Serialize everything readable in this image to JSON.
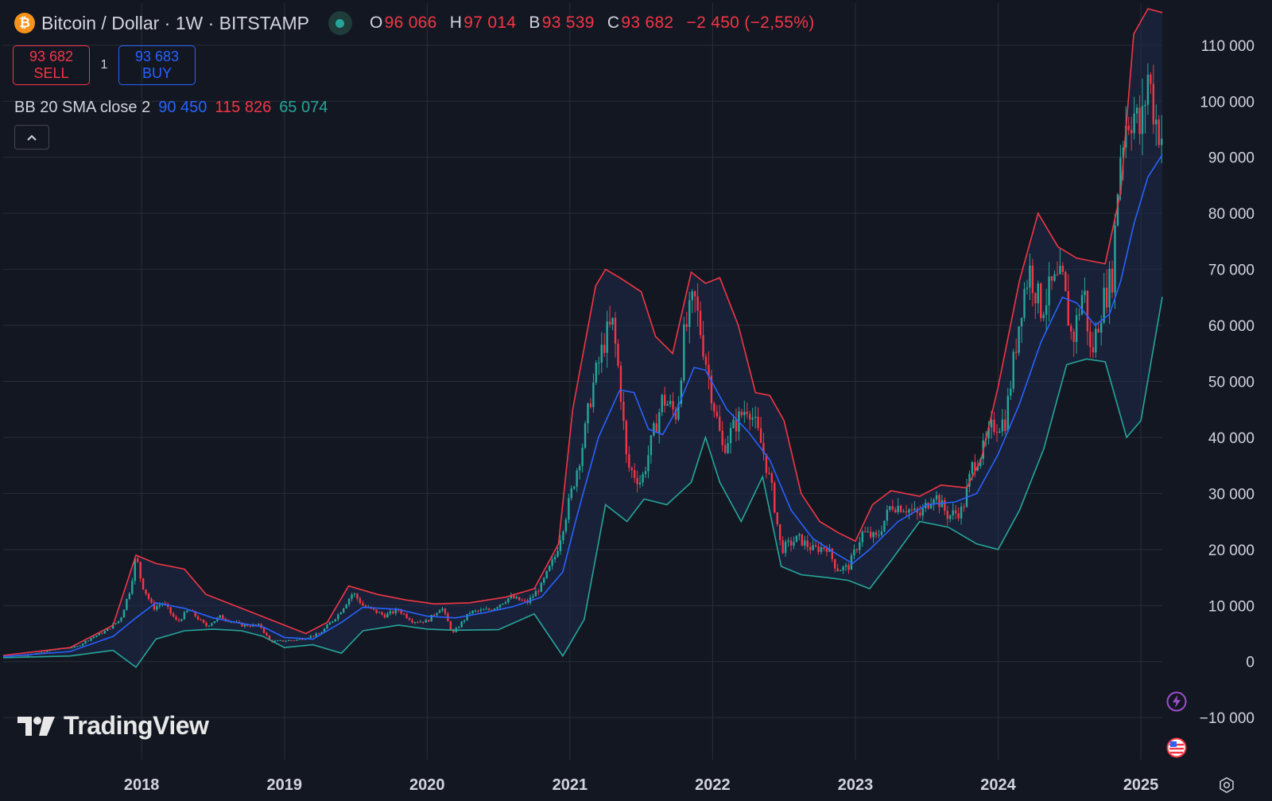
{
  "header": {
    "logo_symbol": "₿",
    "symbol_title": "Bitcoin / Dollar · 1W · BITSTAMP",
    "status_color": "#26a69a",
    "ohlc": [
      {
        "key": "O",
        "value": "96 066"
      },
      {
        "key": "H",
        "value": "97 014"
      },
      {
        "key": "B",
        "value": "93 539"
      },
      {
        "key": "C",
        "value": "93 682"
      }
    ],
    "change": "−2 450 (−2,55%)"
  },
  "trade": {
    "sell_price": "93 682",
    "sell_label": "SELL",
    "quantity": "1",
    "buy_price": "93 683",
    "buy_label": "BUY"
  },
  "indicator": {
    "label": "BB 20 SMA close 2",
    "middle": "90 450",
    "upper": "115 826",
    "lower": "65 074"
  },
  "collapse_icon": "chevron-up-icon",
  "brand": {
    "name": "TradingView"
  },
  "colors": {
    "background": "#131722",
    "grid": "#2a2e39",
    "axis_text": "#d1d4dc",
    "up": "#26a69a",
    "down": "#f23645",
    "bb_basis": "#2962ff",
    "bb_upper": "#f23645",
    "bb_lower": "#26a69a",
    "bb_fill": "#1e2a48"
  },
  "chart_data": {
    "type": "candlestick",
    "title": "Bitcoin / Dollar · 1W · BITSTAMP",
    "indicator": "Bollinger Bands (20, SMA, close, 2)",
    "y_ticks": [
      -10000,
      0,
      10000,
      20000,
      30000,
      40000,
      50000,
      60000,
      70000,
      80000,
      90000,
      100000,
      110000
    ],
    "y_tick_labels": [
      "−10 000",
      "0",
      "10 000",
      "20 000",
      "30 000",
      "40 000",
      "50 000",
      "60 000",
      "70 000",
      "80 000",
      "90 000",
      "100 000",
      "110 000"
    ],
    "ylim": [
      -17500,
      117500
    ],
    "x_tick_labels": [
      "2018",
      "2019",
      "2020",
      "2021",
      "2022",
      "2023",
      "2024",
      "2025"
    ],
    "x_tick_years": [
      2018,
      2019,
      2020,
      2021,
      2022,
      2023,
      2024,
      2025
    ],
    "xlim": [
      2017.03,
      2025.15
    ],
    "price_close": [
      [
        2017.03,
        1000
      ],
      [
        2017.2,
        1150
      ],
      [
        2017.4,
        2200
      ],
      [
        2017.55,
        2700
      ],
      [
        2017.65,
        4300
      ],
      [
        2017.75,
        5500
      ],
      [
        2017.85,
        7500
      ],
      [
        2017.92,
        13000
      ],
      [
        2017.96,
        19000
      ],
      [
        2018.0,
        14000
      ],
      [
        2018.08,
        9500
      ],
      [
        2018.15,
        10500
      ],
      [
        2018.25,
        7000
      ],
      [
        2018.33,
        9300
      ],
      [
        2018.45,
        6300
      ],
      [
        2018.55,
        8000
      ],
      [
        2018.7,
        6500
      ],
      [
        2018.83,
        6400
      ],
      [
        2018.9,
        3600
      ],
      [
        2019.0,
        3700
      ],
      [
        2019.1,
        3900
      ],
      [
        2019.25,
        5000
      ],
      [
        2019.38,
        8500
      ],
      [
        2019.48,
        12300
      ],
      [
        2019.55,
        10000
      ],
      [
        2019.7,
        8200
      ],
      [
        2019.8,
        9200
      ],
      [
        2019.9,
        7200
      ],
      [
        2020.0,
        7200
      ],
      [
        2020.1,
        9800
      ],
      [
        2020.18,
        5000
      ],
      [
        2020.3,
        8800
      ],
      [
        2020.45,
        9300
      ],
      [
        2020.58,
        11500
      ],
      [
        2020.7,
        10500
      ],
      [
        2020.8,
        13500
      ],
      [
        2020.9,
        19000
      ],
      [
        2021.0,
        29000
      ],
      [
        2021.1,
        40000
      ],
      [
        2021.15,
        48000
      ],
      [
        2021.25,
        58000
      ],
      [
        2021.3,
        60000
      ],
      [
        2021.35,
        50000
      ],
      [
        2021.4,
        35000
      ],
      [
        2021.5,
        32000
      ],
      [
        2021.58,
        40000
      ],
      [
        2021.65,
        47000
      ],
      [
        2021.75,
        44000
      ],
      [
        2021.8,
        58000
      ],
      [
        2021.87,
        65000
      ],
      [
        2021.93,
        57000
      ],
      [
        2022.0,
        47000
      ],
      [
        2022.07,
        38000
      ],
      [
        2022.15,
        42000
      ],
      [
        2022.25,
        46000
      ],
      [
        2022.35,
        38000
      ],
      [
        2022.42,
        30000
      ],
      [
        2022.48,
        20000
      ],
      [
        2022.6,
        22000
      ],
      [
        2022.7,
        20000
      ],
      [
        2022.8,
        20500
      ],
      [
        2022.87,
        16500
      ],
      [
        2022.95,
        16800
      ],
      [
        2023.05,
        23000
      ],
      [
        2023.15,
        22000
      ],
      [
        2023.25,
        28000
      ],
      [
        2023.35,
        27500
      ],
      [
        2023.45,
        26000
      ],
      [
        2023.55,
        30000
      ],
      [
        2023.65,
        26000
      ],
      [
        2023.75,
        27000
      ],
      [
        2023.82,
        35000
      ],
      [
        2023.9,
        38000
      ],
      [
        2023.96,
        42000
      ],
      [
        2024.05,
        43000
      ],
      [
        2024.1,
        52000
      ],
      [
        2024.17,
        65000
      ],
      [
        2024.22,
        70000
      ],
      [
        2024.3,
        63000
      ],
      [
        2024.38,
        67000
      ],
      [
        2024.45,
        68000
      ],
      [
        2024.52,
        57000
      ],
      [
        2024.6,
        67000
      ],
      [
        2024.65,
        54000
      ],
      [
        2024.72,
        63000
      ],
      [
        2024.8,
        69000
      ],
      [
        2024.85,
        90000
      ],
      [
        2024.9,
        97000
      ],
      [
        2024.95,
        98000
      ],
      [
        2025.0,
        94000
      ],
      [
        2025.05,
        105000
      ],
      [
        2025.1,
        97000
      ],
      [
        2025.15,
        93682
      ]
    ],
    "series": [
      {
        "name": "BB basis (SMA 20)",
        "values": [
          [
            2017.03,
            900
          ],
          [
            2017.5,
            1800
          ],
          [
            2017.8,
            4500
          ],
          [
            2017.96,
            7800
          ],
          [
            2018.1,
            10500
          ],
          [
            2018.3,
            9500
          ],
          [
            2018.5,
            7800
          ],
          [
            2018.7,
            6800
          ],
          [
            2018.85,
            6200
          ],
          [
            2019.0,
            4300
          ],
          [
            2019.2,
            4000
          ],
          [
            2019.4,
            7000
          ],
          [
            2019.55,
            9700
          ],
          [
            2019.8,
            9300
          ],
          [
            2020.0,
            8100
          ],
          [
            2020.2,
            7800
          ],
          [
            2020.4,
            8700
          ],
          [
            2020.6,
            9800
          ],
          [
            2020.8,
            11500
          ],
          [
            2020.95,
            16000
          ],
          [
            2021.05,
            26000
          ],
          [
            2021.2,
            40000
          ],
          [
            2021.35,
            48500
          ],
          [
            2021.45,
            48000
          ],
          [
            2021.55,
            41500
          ],
          [
            2021.65,
            40500
          ],
          [
            2021.75,
            45000
          ],
          [
            2021.87,
            52500
          ],
          [
            2021.95,
            52000
          ],
          [
            2022.1,
            45000
          ],
          [
            2022.25,
            41000
          ],
          [
            2022.4,
            36000
          ],
          [
            2022.55,
            27000
          ],
          [
            2022.7,
            22000
          ],
          [
            2022.85,
            19500
          ],
          [
            2022.98,
            17500
          ],
          [
            2023.1,
            20000
          ],
          [
            2023.3,
            25000
          ],
          [
            2023.5,
            28000
          ],
          [
            2023.7,
            28500
          ],
          [
            2023.85,
            30000
          ],
          [
            2024.0,
            37000
          ],
          [
            2024.15,
            46000
          ],
          [
            2024.3,
            57000
          ],
          [
            2024.45,
            65000
          ],
          [
            2024.55,
            64000
          ],
          [
            2024.68,
            60000
          ],
          [
            2024.78,
            62000
          ],
          [
            2024.86,
            68000
          ],
          [
            2024.95,
            78000
          ],
          [
            2025.05,
            86500
          ],
          [
            2025.15,
            90450
          ]
        ]
      },
      {
        "name": "BB upper",
        "values": [
          [
            2017.03,
            1100
          ],
          [
            2017.5,
            2500
          ],
          [
            2017.8,
            6500
          ],
          [
            2017.96,
            19000
          ],
          [
            2018.1,
            17500
          ],
          [
            2018.3,
            16500
          ],
          [
            2018.45,
            12000
          ],
          [
            2018.6,
            10500
          ],
          [
            2018.8,
            8500
          ],
          [
            2018.95,
            7000
          ],
          [
            2019.15,
            5000
          ],
          [
            2019.3,
            7000
          ],
          [
            2019.45,
            13500
          ],
          [
            2019.65,
            12000
          ],
          [
            2019.85,
            11000
          ],
          [
            2020.05,
            10300
          ],
          [
            2020.3,
            10500
          ],
          [
            2020.55,
            11500
          ],
          [
            2020.75,
            13000
          ],
          [
            2020.92,
            21000
          ],
          [
            2021.02,
            45000
          ],
          [
            2021.18,
            67000
          ],
          [
            2021.25,
            70000
          ],
          [
            2021.35,
            68500
          ],
          [
            2021.5,
            66000
          ],
          [
            2021.6,
            58000
          ],
          [
            2021.72,
            55000
          ],
          [
            2021.85,
            69500
          ],
          [
            2021.95,
            67500
          ],
          [
            2022.05,
            68500
          ],
          [
            2022.18,
            60000
          ],
          [
            2022.3,
            48000
          ],
          [
            2022.4,
            47500
          ],
          [
            2022.5,
            43000
          ],
          [
            2022.62,
            30000
          ],
          [
            2022.75,
            25000
          ],
          [
            2022.88,
            23000
          ],
          [
            2023.0,
            21500
          ],
          [
            2023.12,
            28000
          ],
          [
            2023.25,
            30500
          ],
          [
            2023.45,
            29500
          ],
          [
            2023.6,
            31500
          ],
          [
            2023.78,
            31000
          ],
          [
            2023.88,
            36000
          ],
          [
            2024.0,
            49000
          ],
          [
            2024.15,
            68000
          ],
          [
            2024.28,
            80000
          ],
          [
            2024.42,
            74000
          ],
          [
            2024.55,
            72000
          ],
          [
            2024.75,
            71000
          ],
          [
            2024.86,
            84000
          ],
          [
            2024.95,
            112000
          ],
          [
            2025.05,
            116500
          ],
          [
            2025.15,
            115826
          ]
        ]
      },
      {
        "name": "BB lower",
        "values": [
          [
            2017.03,
            700
          ],
          [
            2017.5,
            1000
          ],
          [
            2017.8,
            2000
          ],
          [
            2017.96,
            -1000
          ],
          [
            2018.1,
            4000
          ],
          [
            2018.3,
            5500
          ],
          [
            2018.5,
            5800
          ],
          [
            2018.7,
            5500
          ],
          [
            2018.85,
            4500
          ],
          [
            2019.0,
            2500
          ],
          [
            2019.2,
            3000
          ],
          [
            2019.4,
            1500
          ],
          [
            2019.55,
            5500
          ],
          [
            2019.8,
            6500
          ],
          [
            2020.0,
            5800
          ],
          [
            2020.2,
            5600
          ],
          [
            2020.5,
            5700
          ],
          [
            2020.75,
            8500
          ],
          [
            2020.95,
            1000
          ],
          [
            2021.1,
            7500
          ],
          [
            2021.25,
            28000
          ],
          [
            2021.4,
            25000
          ],
          [
            2021.52,
            29000
          ],
          [
            2021.68,
            28000
          ],
          [
            2021.85,
            32000
          ],
          [
            2021.95,
            40000
          ],
          [
            2022.05,
            32000
          ],
          [
            2022.2,
            25000
          ],
          [
            2022.35,
            33000
          ],
          [
            2022.48,
            17000
          ],
          [
            2022.62,
            15500
          ],
          [
            2022.8,
            15000
          ],
          [
            2022.95,
            14500
          ],
          [
            2023.1,
            13000
          ],
          [
            2023.25,
            18000
          ],
          [
            2023.45,
            25000
          ],
          [
            2023.65,
            24000
          ],
          [
            2023.85,
            21000
          ],
          [
            2024.0,
            20000
          ],
          [
            2024.15,
            27000
          ],
          [
            2024.32,
            38000
          ],
          [
            2024.48,
            53000
          ],
          [
            2024.62,
            54000
          ],
          [
            2024.75,
            53500
          ],
          [
            2024.9,
            40000
          ],
          [
            2025.0,
            43000
          ],
          [
            2025.15,
            65074
          ]
        ]
      }
    ]
  }
}
